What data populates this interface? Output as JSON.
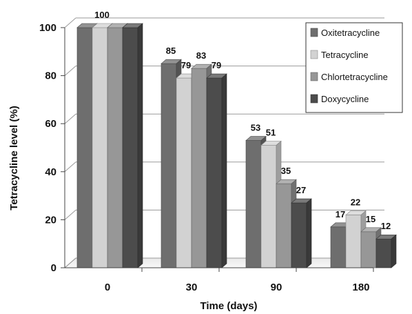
{
  "chart_data": {
    "type": "bar",
    "xlabel": "Time (days)",
    "ylabel": "Tetracycline level (%)",
    "categories": [
      "0",
      "30",
      "90",
      "180"
    ],
    "ylim": [
      0,
      100
    ],
    "yticks": [
      0,
      20,
      40,
      60,
      80,
      100
    ],
    "grid": true,
    "legend_position": "top-right",
    "series": [
      {
        "name": "Oxitetracycline",
        "values": [
          100,
          85,
          53,
          17
        ],
        "labels": [
          "",
          "85",
          "53",
          "17"
        ],
        "color": "#6e6e6e"
      },
      {
        "name": "Tetracycline",
        "values": [
          100,
          79,
          51,
          22
        ],
        "labels": [
          "100",
          "79",
          "51",
          "22"
        ],
        "color": "#d2d2d2"
      },
      {
        "name": "Chlortetracycline",
        "values": [
          100,
          83,
          35,
          15
        ],
        "labels": [
          "",
          "83",
          "35",
          "15"
        ],
        "color": "#979797"
      },
      {
        "name": "Doxycycline",
        "values": [
          100,
          79,
          27,
          12
        ],
        "labels": [
          "",
          "79",
          "27",
          "12"
        ],
        "color": "#4c4c4c"
      }
    ]
  }
}
